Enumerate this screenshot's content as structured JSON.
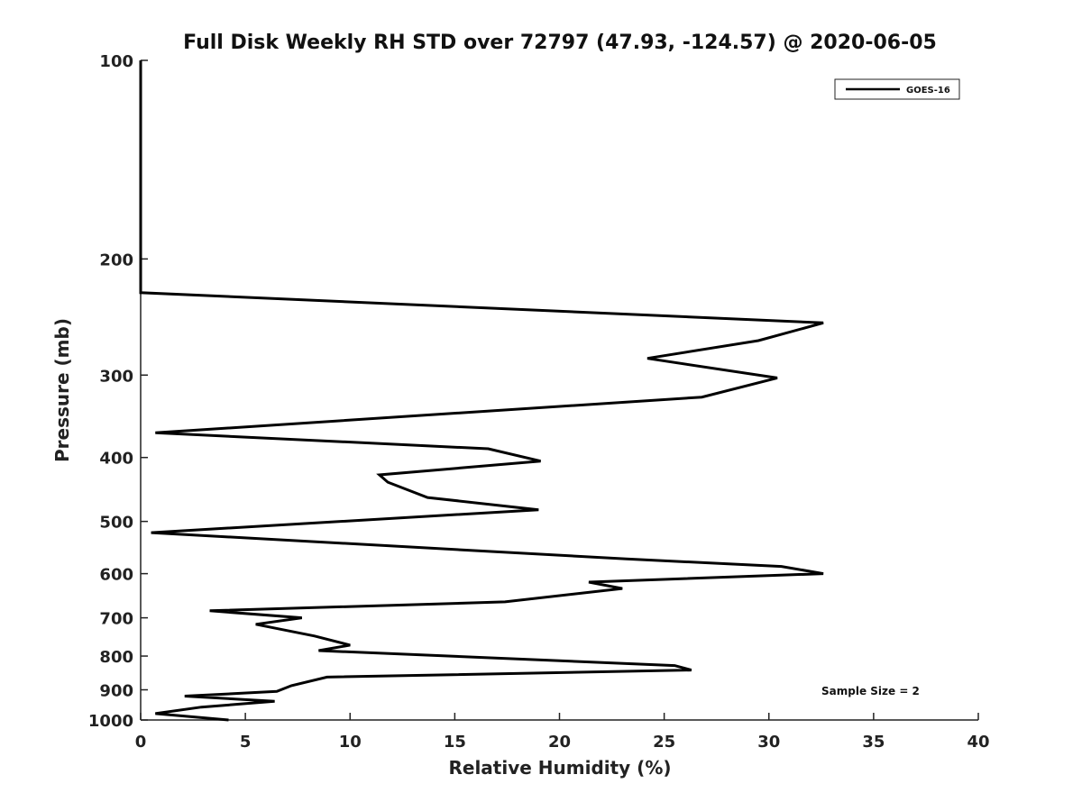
{
  "chart_data": {
    "type": "line",
    "title": "Full Disk Weekly RH STD over 72797 (47.93, -124.57) @ 2020-06-05",
    "xlabel": "Relative Humidity (%)",
    "ylabel": "Pressure (mb)",
    "xlim": [
      0,
      40
    ],
    "ylim": [
      1000,
      100
    ],
    "y_scale": "log",
    "x_ticks": [
      0,
      5,
      10,
      15,
      20,
      25,
      30,
      35,
      40
    ],
    "y_ticks": [
      100,
      200,
      300,
      400,
      500,
      600,
      700,
      800,
      900,
      1000
    ],
    "grid": false,
    "legend_position": "top-right",
    "series": [
      {
        "name": "GOES-16",
        "color": "#000000",
        "x": [
          0.0,
          0.0,
          0.0,
          0.0,
          0.0,
          32.6,
          29.5,
          24.2,
          30.4,
          26.8,
          0.7,
          16.6,
          19.1,
          11.4,
          11.8,
          13.7,
          19.0,
          0.5,
          23.2,
          30.6,
          32.6,
          21.4,
          23.0,
          17.4,
          3.3,
          7.7,
          5.5,
          8.3,
          10.0,
          8.5,
          25.5,
          26.3,
          8.9,
          7.2,
          6.5,
          2.1,
          6.4,
          2.9,
          0.7,
          4.2
        ],
        "y": [
          100,
          150,
          175,
          200,
          225,
          250,
          266,
          283,
          303,
          324,
          367,
          388,
          405,
          425,
          436,
          460,
          480,
          520,
          570,
          585,
          600,
          618,
          632,
          662,
          683,
          700,
          716,
          746,
          770,
          785,
          827,
          840,
          861,
          887,
          905,
          920,
          937,
          956,
          978,
          1000
        ]
      }
    ],
    "annotations": [
      "Sample Size = 2"
    ]
  }
}
